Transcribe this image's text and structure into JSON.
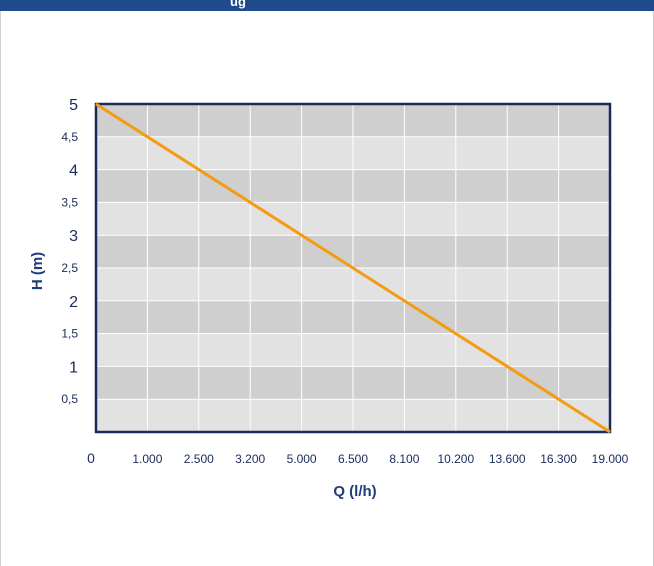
{
  "header": {
    "title_fragment": "ug"
  },
  "colors": {
    "header": "#1f4b8c",
    "line": "#f39c12",
    "frame": "#1b2a5a",
    "band_dark": "#cfcfcf",
    "band_light": "#e2e2e2"
  },
  "chart_data": {
    "type": "line",
    "title": "",
    "xlabel": "Q (l/h)",
    "ylabel": "H (m)",
    "x_tick_labels": [
      "0",
      "1.000",
      "2.500",
      "3.200",
      "5.000",
      "6.500",
      "8.100",
      "10.200",
      "13.600",
      "16.300",
      "19.000"
    ],
    "y_tick_labels": [
      "0,5",
      "1",
      "1,5",
      "2",
      "2,5",
      "3",
      "3,5",
      "4",
      "4,5",
      "5"
    ],
    "y_tick_values": [
      0.5,
      1,
      1.5,
      2,
      2.5,
      3,
      3.5,
      4,
      4.5,
      5
    ],
    "ylim": [
      0,
      5
    ],
    "grid": true,
    "series": [
      {
        "x_index": [
          0,
          10
        ],
        "y": [
          5,
          0
        ]
      }
    ]
  }
}
